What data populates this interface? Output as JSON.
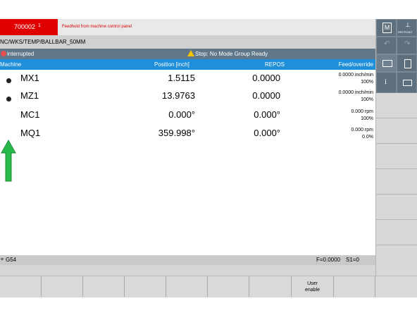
{
  "alarm": {
    "number": "700002",
    "marker": "1",
    "text": "Feedhold from machine control panel"
  },
  "path": "NC/WKS/TEMP/BALLBAR_50MM",
  "status": {
    "program_state": "interrupted",
    "message": "Stop: No Mode Group Ready"
  },
  "table": {
    "headers": {
      "machine": "Machine",
      "position": "Position [inch]",
      "repos": "REPOS",
      "feed": "Feed/override"
    },
    "axes": [
      {
        "name": "MX1",
        "position": "1.5115",
        "repos": "0.0000",
        "feed": "0.0000 inch/min",
        "override": "100%",
        "icon": true
      },
      {
        "name": "MZ1",
        "position": "13.9763",
        "repos": "0.0000",
        "feed": "0.0000 inch/min",
        "override": "100%",
        "icon": true
      },
      {
        "name": "MC1",
        "position": "0.000°",
        "repos": "0.000°",
        "feed": "0.000 rpm",
        "override": "100%",
        "icon": false
      },
      {
        "name": "MQ1",
        "position": "359.998°",
        "repos": "0.000°",
        "feed": "0.000 rpm",
        "override": "0.0%",
        "icon": false
      }
    ]
  },
  "work_offset": {
    "label": "G54",
    "feed": "F=0.0000",
    "spindle": "S1=0"
  },
  "softkeys": {
    "user_enable_line1": "User",
    "user_enable_line2": "enable"
  },
  "right_panel": {
    "m_icon": "M",
    "ref_point": "REF.POINT"
  },
  "colors": {
    "alarm_red": "#e00000",
    "header_blue": "#1e8fd8",
    "status_gray": "#5f7789",
    "arrow_green": "#29b84a"
  }
}
